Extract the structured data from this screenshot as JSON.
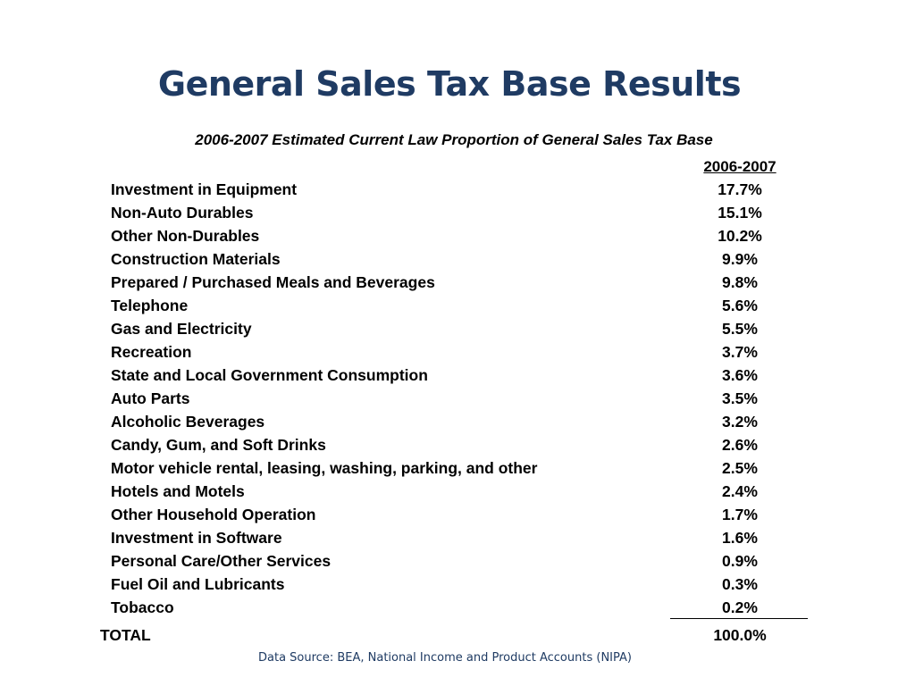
{
  "title": "General Sales Tax Base Results",
  "subtitle": "2006-2007 Estimated Current Law Proportion of General Sales Tax Base",
  "column_header": "2006-2007",
  "rows": [
    {
      "label": "Investment in Equipment",
      "value": "17.7%"
    },
    {
      "label": "Non-Auto Durables",
      "value": "15.1%"
    },
    {
      "label": "Other Non-Durables",
      "value": "10.2%"
    },
    {
      "label": "Construction Materials",
      "value": "9.9%"
    },
    {
      "label": "Prepared / Purchased Meals and Beverages",
      "value": "9.8%"
    },
    {
      "label": "Telephone",
      "value": "5.6%"
    },
    {
      "label": "Gas and Electricity",
      "value": "5.5%"
    },
    {
      "label": "Recreation",
      "value": "3.7%"
    },
    {
      "label": "State and Local Government Consumption",
      "value": "3.6%"
    },
    {
      "label": "Auto Parts",
      "value": "3.5%"
    },
    {
      "label": "Alcoholic Beverages",
      "value": "3.2%"
    },
    {
      "label": "Candy, Gum, and Soft Drinks",
      "value": "2.6%"
    },
    {
      "label": "Motor vehicle rental, leasing, washing, parking, and other",
      "value": "2.5%"
    },
    {
      "label": "Hotels and Motels",
      "value": "2.4%"
    },
    {
      "label": "Other Household Operation",
      "value": "1.7%"
    },
    {
      "label": "Investment in Software",
      "value": "1.6%"
    },
    {
      "label": "Personal Care/Other Services",
      "value": "0.9%"
    },
    {
      "label": "Fuel Oil and Lubricants",
      "value": "0.3%"
    },
    {
      "label": "Tobacco",
      "value": "0.2%"
    }
  ],
  "total": {
    "label": "TOTAL",
    "value": "100.0%"
  },
  "source": "Data Source: BEA, National Income and Product Accounts (NIPA)",
  "colors": {
    "title": "#1f3b63",
    "source": "#1f3b63",
    "text": "#000000"
  }
}
